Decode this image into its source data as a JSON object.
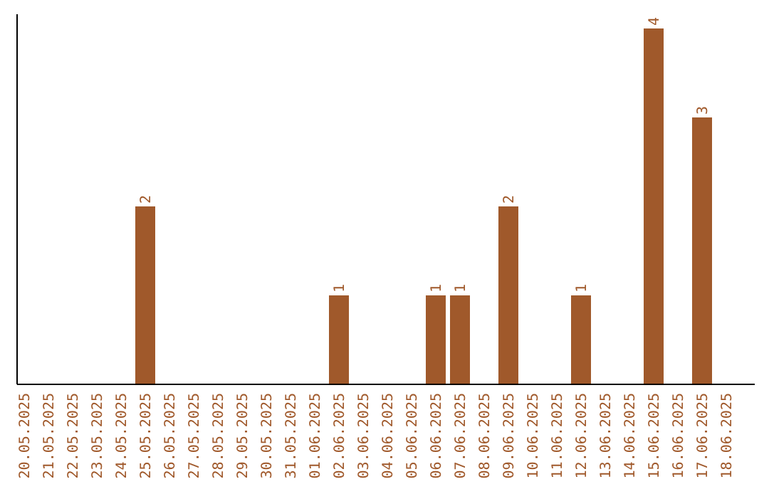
{
  "chart_data": {
    "type": "bar",
    "categories": [
      "20.05.2025",
      "21.05.2025",
      "22.05.2025",
      "23.05.2025",
      "24.05.2025",
      "25.05.2025",
      "26.05.2025",
      "27.05.2025",
      "28.05.2025",
      "29.05.2025",
      "30.05.2025",
      "31.05.2025",
      "01.06.2025",
      "02.06.2025",
      "03.06.2025",
      "04.06.2025",
      "05.06.2025",
      "06.06.2025",
      "07.06.2025",
      "08.06.2025",
      "09.06.2025",
      "10.06.2025",
      "11.06.2025",
      "12.06.2025",
      "13.06.2025",
      "14.06.2025",
      "15.06.2025",
      "16.06.2025",
      "17.06.2025",
      "18.06.2025"
    ],
    "values": [
      0,
      0,
      0,
      0,
      0,
      2,
      0,
      0,
      0,
      0,
      0,
      0,
      0,
      1,
      0,
      0,
      0,
      1,
      1,
      0,
      2,
      0,
      0,
      1,
      0,
      0,
      4,
      0,
      3,
      0
    ],
    "color": "#a0592b",
    "value_labels": [
      null,
      null,
      null,
      null,
      null,
      "2",
      null,
      null,
      null,
      null,
      null,
      null,
      null,
      "1",
      null,
      null,
      null,
      "1",
      "1",
      null,
      "2",
      null,
      null,
      "1",
      null,
      null,
      "4",
      null,
      "3",
      null
    ]
  }
}
